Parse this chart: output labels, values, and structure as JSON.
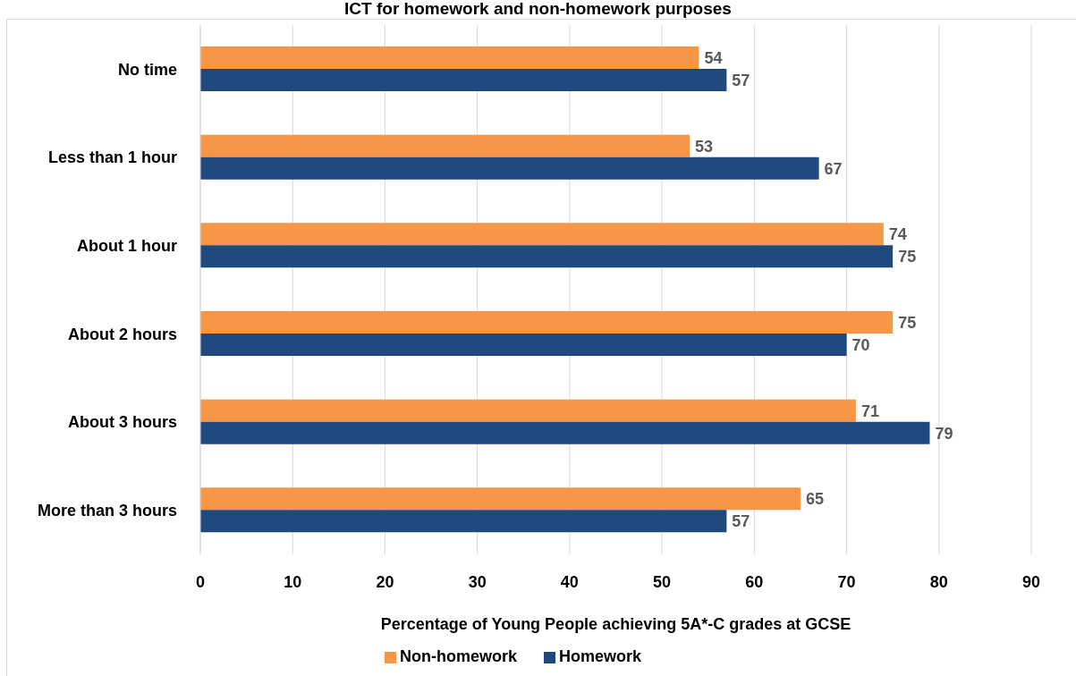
{
  "chart_data": {
    "type": "bar",
    "orientation": "horizontal",
    "title": "ICT for homework and non-homework purposes",
    "xlabel": "Percentage of Young People achieving 5A*-C grades at GCSE",
    "categories": [
      "No time",
      "Less than 1 hour",
      "About 1 hour",
      "About 2 hours",
      "About 3 hours",
      "More than 3 hours"
    ],
    "series": [
      {
        "name": "Non-homework",
        "color": "#f79646",
        "values": [
          54,
          53,
          74,
          75,
          71,
          65
        ]
      },
      {
        "name": "Homework",
        "color": "#1f497d",
        "values": [
          57,
          67,
          75,
          70,
          79,
          57
        ]
      }
    ],
    "xlim": [
      0,
      90
    ],
    "xticks": [
      0,
      10,
      20,
      30,
      40,
      50,
      60,
      70,
      80,
      90
    ],
    "grid": "x",
    "legend": "bottom",
    "data_labels": true
  }
}
